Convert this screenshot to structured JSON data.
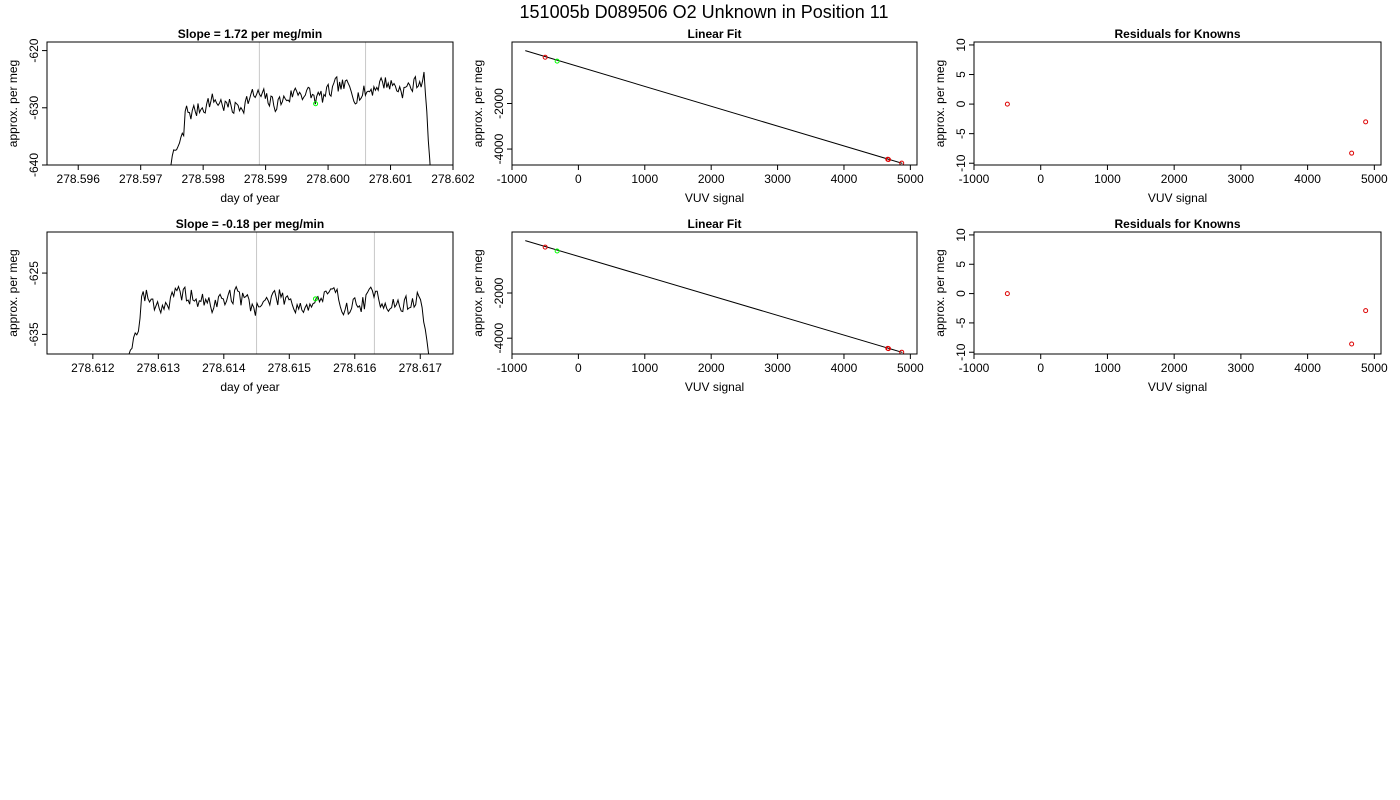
{
  "figure_title": "151005b     D089506   O2 Unknown in Position  11",
  "chart_data": [
    {
      "id": "ts1",
      "type": "line",
      "title": "Slope =  1.72  per meg/min",
      "xlabel": "day of year",
      "ylabel": "approx. per meg",
      "xlim": [
        278.5955,
        278.602
      ],
      "ylim": [
        -640,
        -618.5
      ],
      "xticks": [
        278.596,
        278.597,
        278.598,
        278.599,
        278.6,
        278.601,
        278.602
      ],
      "xtick_labels": [
        "278.596",
        "278.597",
        "278.598",
        "278.599",
        "278.600",
        "278.601",
        "278.602"
      ],
      "yticks": [
        -640,
        -630,
        -620
      ],
      "ytick_labels": [
        "-640",
        "-630",
        "-620"
      ],
      "vlines": [
        278.5989,
        278.6006
      ],
      "trace": {
        "x0": 278.5973,
        "x1": 278.60165,
        "base": -628.0,
        "drift_per_unit": 1.72,
        "amp": 1.4,
        "seed": 7,
        "start_from": -643,
        "ramp_to": -635,
        "ramp_frac": 0.09,
        "end_to": -643,
        "end_frac": 0.025
      },
      "points": [
        {
          "x": 278.5998,
          "y": -629.3,
          "color": "#00ff00"
        }
      ]
    },
    {
      "id": "fit1",
      "type": "scatter",
      "title": "Linear Fit",
      "xlabel": "VUV signal",
      "ylabel": "approx. per meg",
      "xlim": [
        -1000,
        5100
      ],
      "ylim": [
        -4700,
        700
      ],
      "xticks": [
        -1000,
        0,
        1000,
        2000,
        3000,
        4000,
        5000
      ],
      "xtick_labels": [
        "-1000",
        "0",
        "1000",
        "2000",
        "3000",
        "4000",
        "5000"
      ],
      "yticks": [
        -4000,
        -2000
      ],
      "ytick_labels": [
        "-4000",
        "-2000"
      ],
      "line": {
        "x": [
          -800,
          4880
        ],
        "y": [
          320,
          -4630
        ]
      },
      "points": [
        {
          "x": -500,
          "y": 30,
          "color": "#dd0000"
        },
        {
          "x": -320,
          "y": -140,
          "color": "#00ff00"
        },
        {
          "x": 4660,
          "y": -4450,
          "color": "#dd0000"
        },
        {
          "x": 4670,
          "y": -4460,
          "color": "#dd0000"
        },
        {
          "x": 4870,
          "y": -4620,
          "color": "#dd0000"
        }
      ]
    },
    {
      "id": "res1",
      "type": "scatter",
      "title": "Residuals for Knowns",
      "xlabel": "VUV signal",
      "ylabel": "approx. per meg",
      "xlim": [
        -1000,
        5100
      ],
      "ylim": [
        -10.3,
        10.5
      ],
      "xticks": [
        -1000,
        0,
        1000,
        2000,
        3000,
        4000,
        5000
      ],
      "xtick_labels": [
        "-1000",
        "0",
        "1000",
        "2000",
        "3000",
        "4000",
        "5000"
      ],
      "yticks": [
        -10,
        -5,
        0,
        5,
        10
      ],
      "ytick_labels": [
        "-10",
        "-5",
        "0",
        "5",
        "10"
      ],
      "points": [
        {
          "x": -500,
          "y": 0.0,
          "color": "#dd0000"
        },
        {
          "x": 4660,
          "y": -8.3,
          "color": "#dd0000"
        },
        {
          "x": 4870,
          "y": -3.0,
          "color": "#dd0000"
        }
      ]
    },
    {
      "id": "ts2",
      "type": "line",
      "title": "Slope =  -0.18  per meg/min",
      "xlabel": "day of year",
      "ylabel": "approx. per meg",
      "xlim": [
        278.6113,
        278.6175
      ],
      "ylim": [
        -638.2,
        -618.3
      ],
      "xticks": [
        278.612,
        278.613,
        278.614,
        278.615,
        278.616,
        278.617
      ],
      "xtick_labels": [
        "278.612",
        "278.613",
        "278.614",
        "278.615",
        "278.616",
        "278.617"
      ],
      "yticks": [
        -635,
        -625
      ],
      "ytick_labels": [
        "-635",
        "-625"
      ],
      "vlines": [
        278.6145,
        278.6163
      ],
      "trace": {
        "x0": 278.6125,
        "x1": 278.61715,
        "base": -629.5,
        "drift_per_unit": -0.18,
        "amp": 1.5,
        "seed": 19,
        "start_from": -640,
        "ramp_to": -632,
        "ramp_frac": 0.05,
        "end_to": -640,
        "end_frac": 0.03
      },
      "points": [
        {
          "x": 278.6154,
          "y": -629.2,
          "color": "#00ff00"
        }
      ]
    },
    {
      "id": "fit2",
      "type": "scatter",
      "title": "Linear Fit",
      "xlabel": "VUV signal",
      "ylabel": "approx. per meg",
      "xlim": [
        -1000,
        5100
      ],
      "ylim": [
        -4700,
        700
      ],
      "xticks": [
        -1000,
        0,
        1000,
        2000,
        3000,
        4000,
        5000
      ],
      "xtick_labels": [
        "-1000",
        "0",
        "1000",
        "2000",
        "3000",
        "4000",
        "5000"
      ],
      "yticks": [
        -4000,
        -2000
      ],
      "ytick_labels": [
        "-4000",
        "-2000"
      ],
      "line": {
        "x": [
          -800,
          4880
        ],
        "y": [
          320,
          -4630
        ]
      },
      "points": [
        {
          "x": -500,
          "y": 30,
          "color": "#dd0000"
        },
        {
          "x": -320,
          "y": -140,
          "color": "#00ff00"
        },
        {
          "x": 4660,
          "y": -4450,
          "color": "#dd0000"
        },
        {
          "x": 4670,
          "y": -4460,
          "color": "#dd0000"
        },
        {
          "x": 4870,
          "y": -4620,
          "color": "#dd0000"
        }
      ]
    },
    {
      "id": "res2",
      "type": "scatter",
      "title": "Residuals for Knowns",
      "xlabel": "VUV signal",
      "ylabel": "approx. per meg",
      "xlim": [
        -1000,
        5100
      ],
      "ylim": [
        -10.3,
        10.5
      ],
      "xticks": [
        -1000,
        0,
        1000,
        2000,
        3000,
        4000,
        5000
      ],
      "xtick_labels": [
        "-1000",
        "0",
        "1000",
        "2000",
        "3000",
        "4000",
        "5000"
      ],
      "yticks": [
        -10,
        -5,
        0,
        5,
        10
      ],
      "ytick_labels": [
        "-10",
        "-5",
        "0",
        "5",
        "10"
      ],
      "points": [
        {
          "x": -500,
          "y": 0.0,
          "color": "#dd0000"
        },
        {
          "x": 4660,
          "y": -8.6,
          "color": "#dd0000"
        },
        {
          "x": 4870,
          "y": -2.9,
          "color": "#dd0000"
        }
      ]
    }
  ]
}
